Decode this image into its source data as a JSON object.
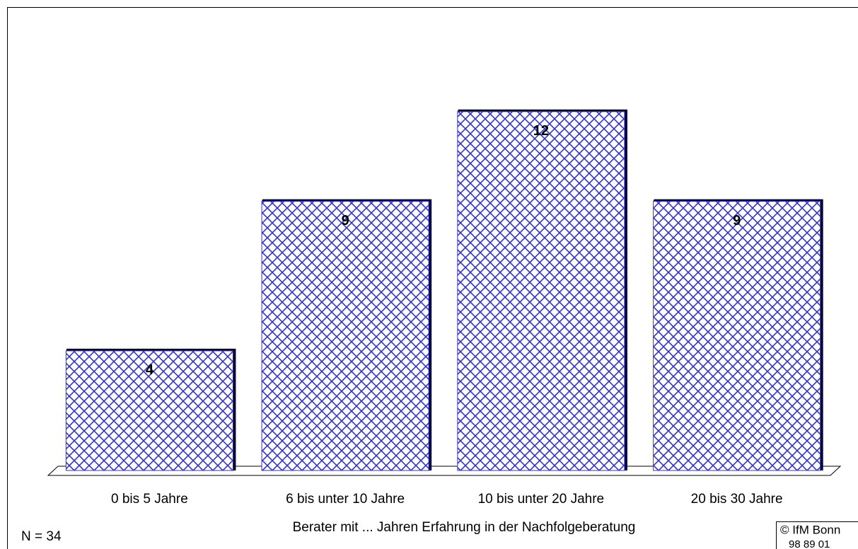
{
  "chart_data": {
    "type": "bar",
    "categories": [
      "0 bis 5 Jahre",
      "6 bis unter 10 Jahre",
      "10 bis unter 20 Jahre",
      "20 bis 30 Jahre"
    ],
    "values": [
      4,
      9,
      12,
      9
    ],
    "color": "#3333cc",
    "ylim": [
      0,
      15
    ],
    "x_label": "Berater mit ... Jahren Erfahrung in der Nachfolgeberatung",
    "note": "N = 34",
    "source": [
      "© IfM Bonn",
      "98  89  01"
    ]
  }
}
